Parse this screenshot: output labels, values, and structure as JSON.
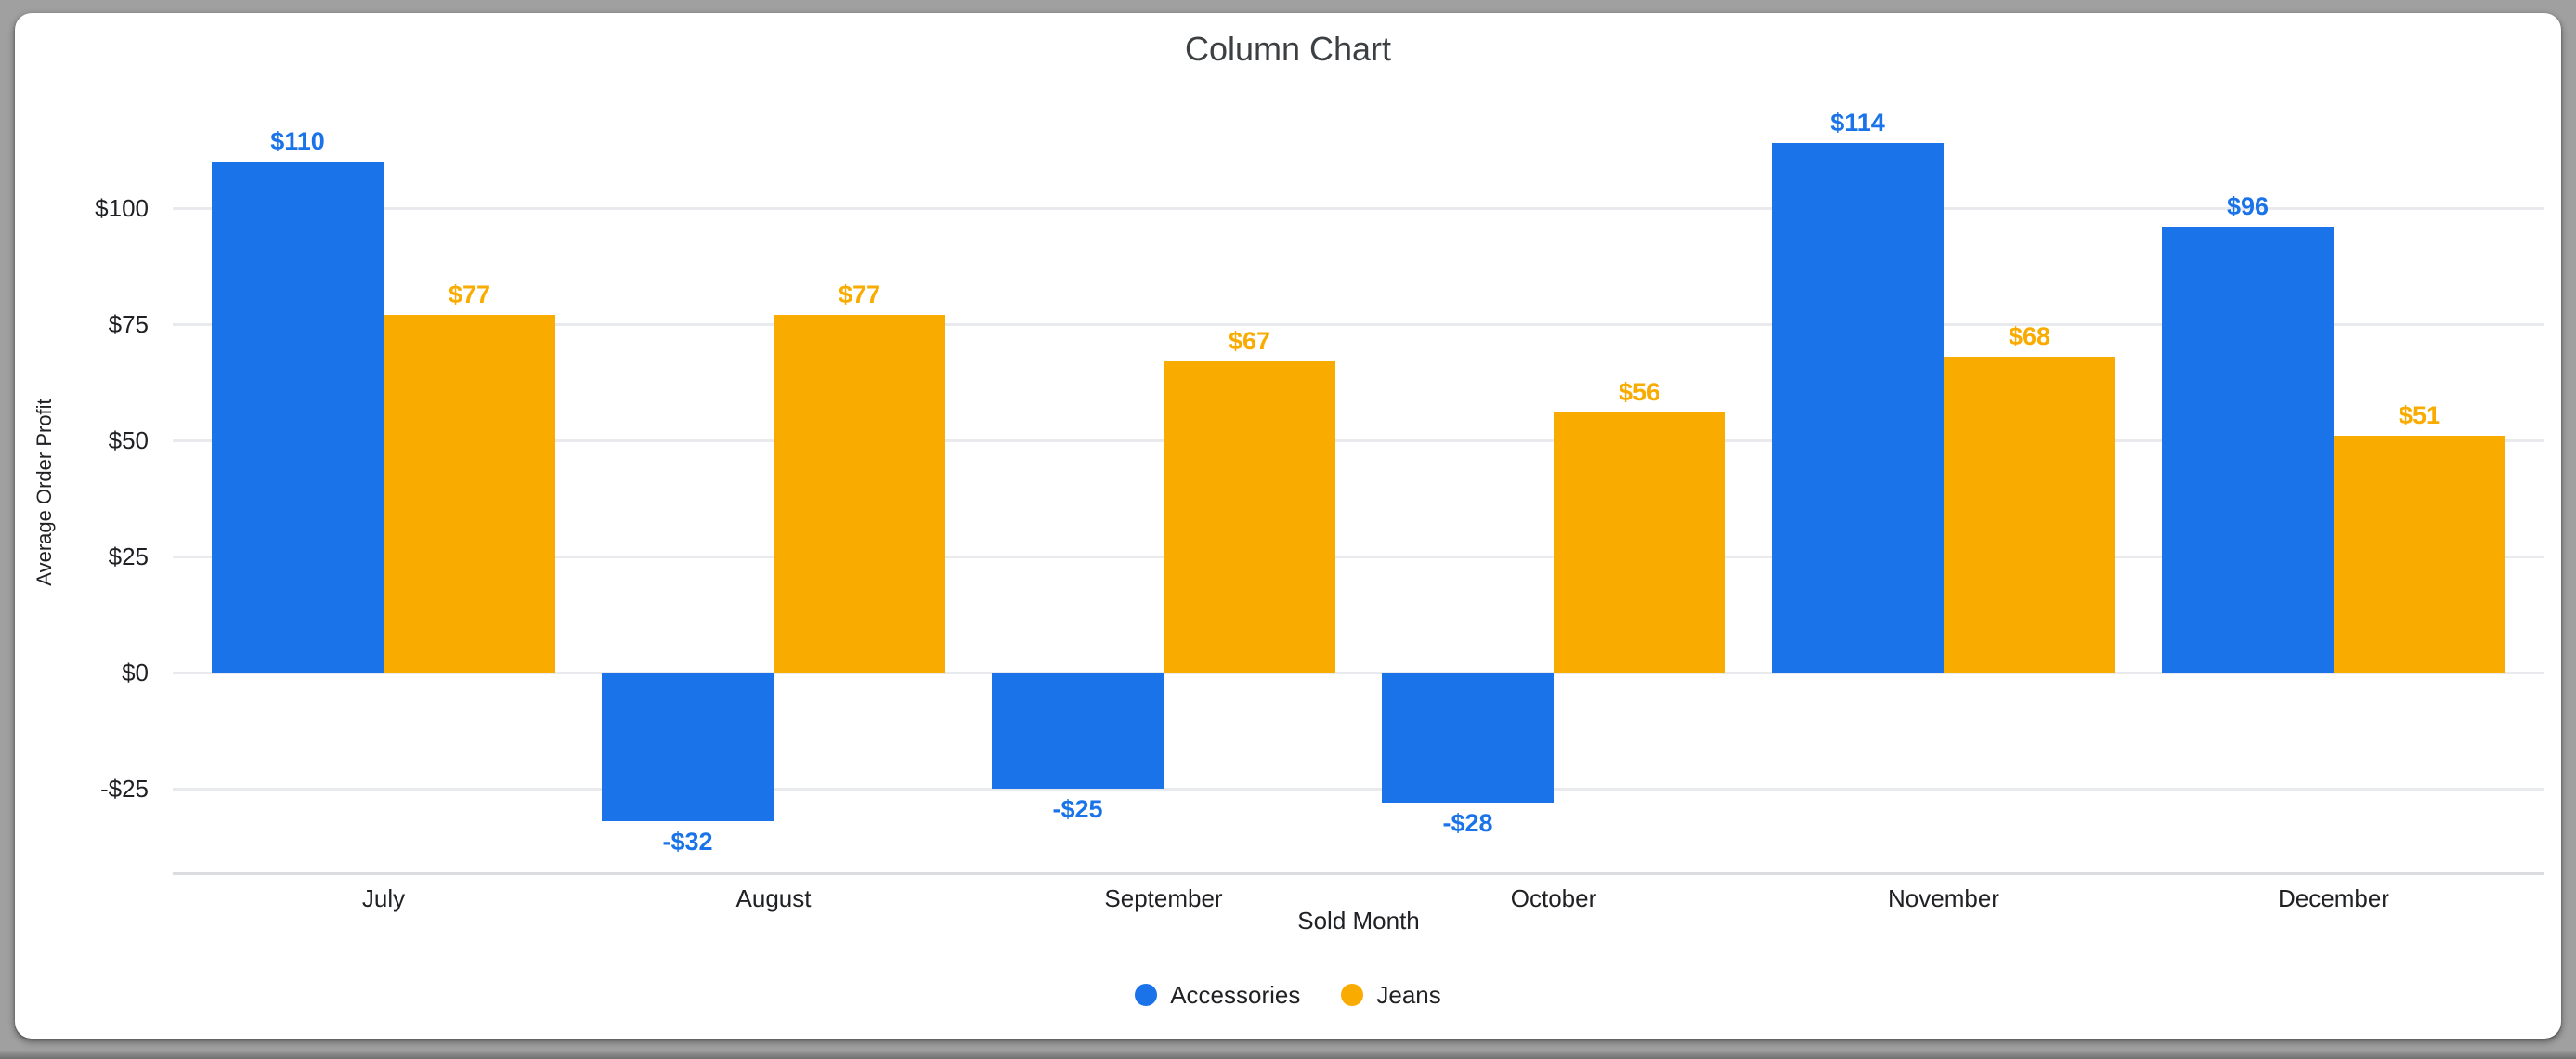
{
  "page": {
    "background": "#a0a0a0",
    "card_background": "#ffffff"
  },
  "chart_data": {
    "type": "bar",
    "title": "Column Chart",
    "xlabel": "Sold Month",
    "ylabel": "Average Order Profit",
    "categories": [
      "July",
      "August",
      "September",
      "October",
      "November",
      "December"
    ],
    "series": [
      {
        "name": "Accessories",
        "color": "#1a73e8",
        "values": [
          110,
          -32,
          -25,
          -28,
          114,
          96
        ],
        "labels": [
          "$110",
          "-$32",
          "-$25",
          "-$28",
          "$114",
          "$96"
        ]
      },
      {
        "name": "Jeans",
        "color": "#f9ab00",
        "values": [
          77,
          77,
          67,
          56,
          68,
          51
        ],
        "labels": [
          "$77",
          "$77",
          "$67",
          "$56",
          "$68",
          "$51"
        ]
      }
    ],
    "yticks": [
      {
        "value": 100,
        "label": "$100"
      },
      {
        "value": 75,
        "label": "$75"
      },
      {
        "value": 50,
        "label": "$50"
      },
      {
        "value": 25,
        "label": "$25"
      },
      {
        "value": 0,
        "label": "$0"
      },
      {
        "value": -25,
        "label": "-$25"
      }
    ],
    "ylim": [
      -43,
      118
    ],
    "grid": true,
    "legend_position": "bottom",
    "colors": {
      "gridline": "#e8eaed",
      "axis_line": "#dadce0",
      "tick_text": "#202124",
      "title_text": "#3c4043"
    }
  }
}
